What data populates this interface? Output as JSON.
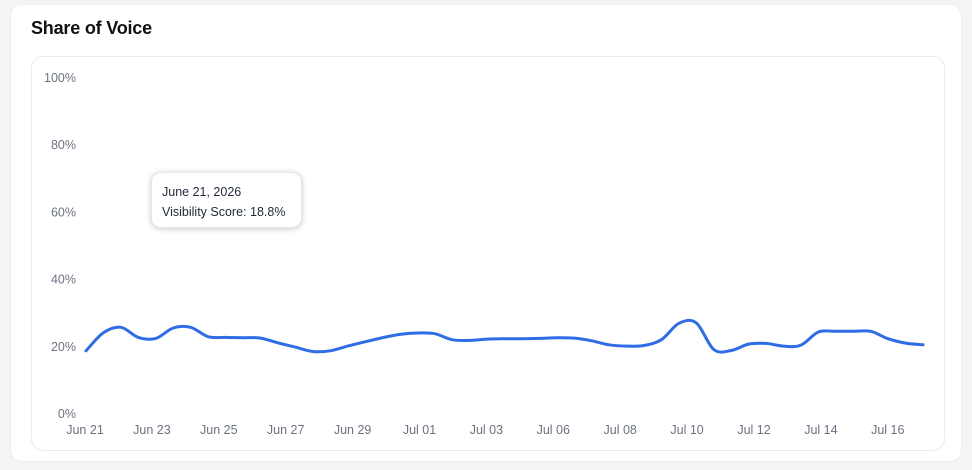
{
  "card": {
    "title": "Share of Voice"
  },
  "tooltip": {
    "date": "June 21, 2026",
    "label": "Visibility Score: 18.8%"
  },
  "chart_data": {
    "type": "line",
    "title": "Share of Voice",
    "xlabel": "",
    "ylabel": "",
    "ylim": [
      0,
      100
    ],
    "y_ticks": [
      "0%",
      "20%",
      "40%",
      "60%",
      "80%",
      "100%"
    ],
    "x_ticks": [
      "Jun 21",
      "Jun 23",
      "Jun 25",
      "Jun 27",
      "Jun 29",
      "Jul 01",
      "Jul 03",
      "Jul 06",
      "Jul 08",
      "Jul 10",
      "Jul 12",
      "Jul 14",
      "Jul 16"
    ],
    "grid": false,
    "legend": "none",
    "colors": {
      "line": "#2f6ce5"
    },
    "series": [
      {
        "values": [
          18.8,
          24.2,
          25.8,
          22.8,
          22.5,
          25.6,
          25.8,
          23.0,
          22.8,
          22.7,
          22.6,
          21.2,
          19.9,
          18.6,
          18.8,
          20.2,
          21.5,
          22.7,
          23.7,
          24.1,
          23.9,
          22.1,
          21.9,
          22.3,
          22.4,
          22.4,
          22.5,
          22.7,
          22.6,
          21.8,
          20.6,
          20.2,
          20.4,
          22.1,
          27.0,
          27.1,
          19.2,
          18.9,
          20.8,
          21.0,
          20.2,
          20.5,
          24.4,
          24.6,
          24.6,
          24.6,
          22.4,
          21.1,
          20.6
        ]
      }
    ]
  }
}
